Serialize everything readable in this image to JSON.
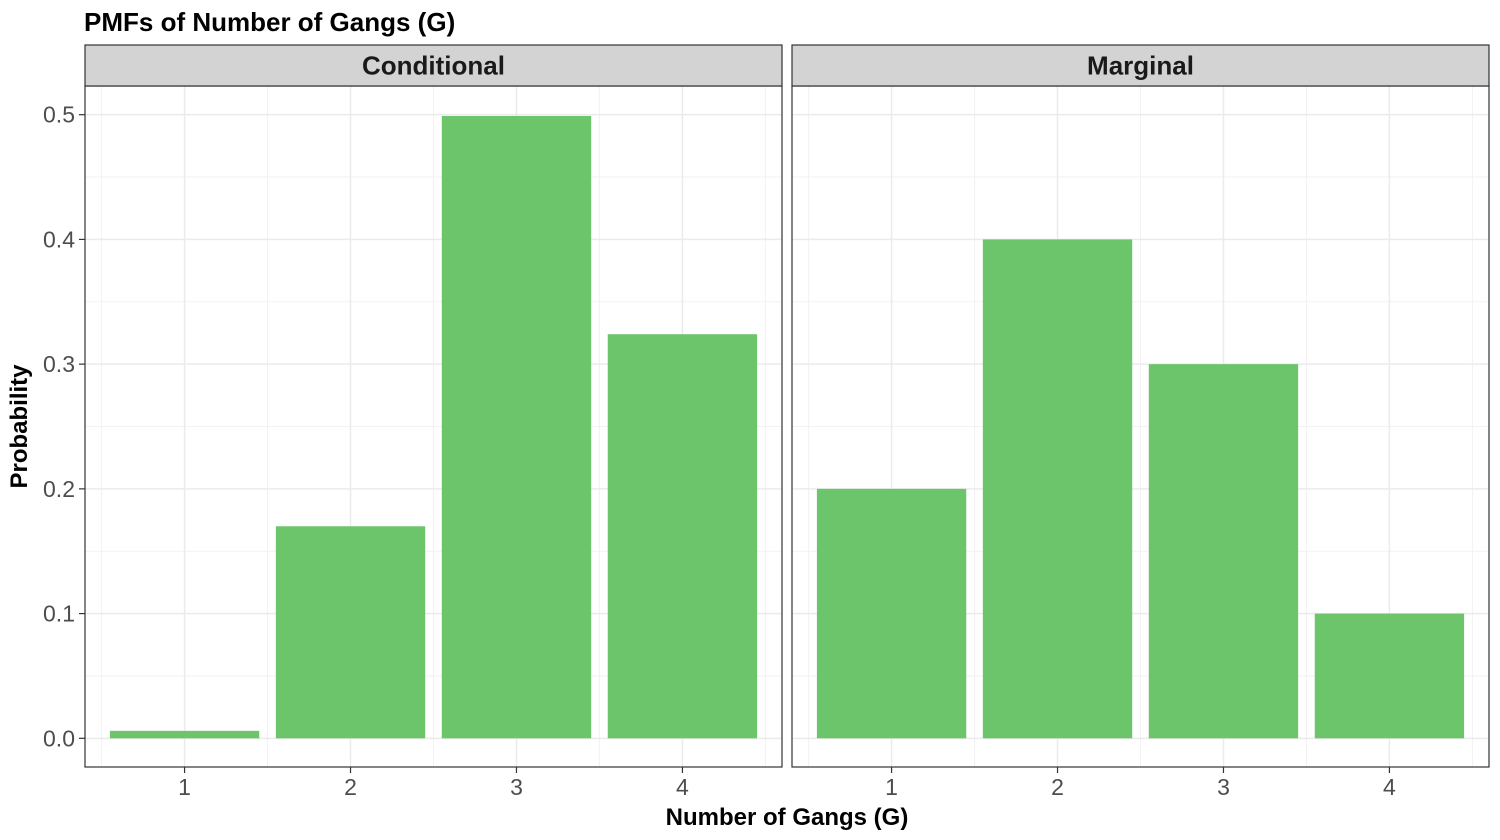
{
  "chart_data": {
    "type": "bar",
    "title": "PMFs of Number of Gangs (G)",
    "xlabel": "Number of Gangs (G)",
    "ylabel": "Probability",
    "categories": [
      "1",
      "2",
      "3",
      "4"
    ],
    "ylim": [
      -0.023,
      0.523
    ],
    "yticks": [
      0.0,
      0.1,
      0.2,
      0.3,
      0.4,
      0.5
    ],
    "ytick_labels": [
      "0.0",
      "0.1",
      "0.2",
      "0.3",
      "0.4",
      "0.5"
    ],
    "grid": true,
    "bar_color": "#6CC56A",
    "facets": [
      {
        "name": "Conditional",
        "values": [
          0.006,
          0.17,
          0.499,
          0.324
        ]
      },
      {
        "name": "Marginal",
        "values": [
          0.2,
          0.4,
          0.3,
          0.1
        ]
      }
    ]
  }
}
